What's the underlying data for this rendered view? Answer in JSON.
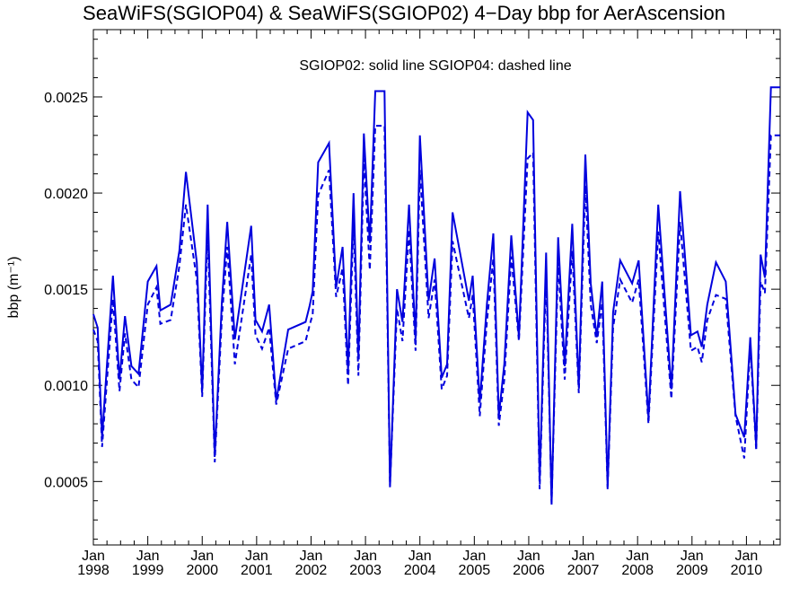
{
  "chart_data": {
    "type": "line",
    "title": "SeaWiFS(SGIOP04) & SeaWiFS(SGIOP02) 4−Day bbp for AerAscension",
    "annotation": "SGIOP02: solid line   SGIOP04: dashed line",
    "ylabel": "bbp",
    "ylabel_unit": "(m⁻¹)",
    "ylim": [
      0.00017,
      0.00285
    ],
    "xlim": [
      1998.0,
      2010.62
    ],
    "yticks": [
      "0.0005",
      "0.0010",
      "0.0015",
      "0.0020",
      "0.0025"
    ],
    "ytick_values": [
      0.0005,
      0.001,
      0.0015,
      0.002,
      0.0025
    ],
    "xticks": [
      {
        "month": "Jan",
        "year": "1998",
        "value": 1998
      },
      {
        "month": "Jan",
        "year": "1999",
        "value": 1999
      },
      {
        "month": "Jan",
        "year": "2000",
        "value": 2000
      },
      {
        "month": "Jan",
        "year": "2001",
        "value": 2001
      },
      {
        "month": "Jan",
        "year": "2002",
        "value": 2002
      },
      {
        "month": "Jan",
        "year": "2003",
        "value": 2003
      },
      {
        "month": "Jan",
        "year": "2004",
        "value": 2004
      },
      {
        "month": "Jan",
        "year": "2005",
        "value": 2005
      },
      {
        "month": "Jan",
        "year": "2006",
        "value": 2006
      },
      {
        "month": "Jan",
        "year": "2007",
        "value": 2007
      },
      {
        "month": "Jan",
        "year": "2008",
        "value": 2008
      },
      {
        "month": "Jan",
        "year": "2009",
        "value": 2009
      },
      {
        "month": "Jan",
        "year": "2010",
        "value": 2010
      }
    ],
    "grid": false,
    "series_color": "#0000dd",
    "series": [
      {
        "line_style": "solid",
        "x": [
          1998.0,
          1998.08,
          1998.16,
          1998.36,
          1998.48,
          1998.58,
          1998.7,
          1998.83,
          1999.0,
          1999.16,
          1999.23,
          1999.42,
          1999.58,
          1999.7,
          1999.9,
          2000.0,
          2000.1,
          2000.23,
          2000.36,
          2000.46,
          2000.6,
          2000.9,
          2000.98,
          2001.1,
          2001.23,
          2001.36,
          2001.58,
          2001.9,
          2001.97,
          2002.03,
          2002.13,
          2002.33,
          2002.46,
          2002.58,
          2002.68,
          2002.78,
          2002.87,
          2002.97,
          2003.08,
          2003.18,
          2003.35,
          2003.45,
          2003.58,
          2003.68,
          2003.8,
          2003.92,
          2004.0,
          2004.16,
          2004.27,
          2004.4,
          2004.5,
          2004.6,
          2004.9,
          2004.97,
          2005.1,
          2005.23,
          2005.35,
          2005.45,
          2005.55,
          2005.68,
          2005.82,
          2005.98,
          2006.08,
          2006.2,
          2006.32,
          2006.42,
          2006.54,
          2006.66,
          2006.8,
          2006.92,
          2007.04,
          2007.14,
          2007.25,
          2007.35,
          2007.45,
          2007.55,
          2007.68,
          2007.9,
          2008.02,
          2008.2,
          2008.38,
          2008.62,
          2008.78,
          2008.98,
          2009.1,
          2009.18,
          2009.28,
          2009.44,
          2009.62,
          2009.8,
          2009.96,
          2010.07,
          2010.18,
          2010.26,
          2010.34,
          2010.45,
          2010.52,
          2010.58,
          2010.62
        ],
        "y": [
          0.00137,
          0.0013,
          0.00073,
          0.00157,
          0.00103,
          0.00136,
          0.0011,
          0.00106,
          0.00154,
          0.00162,
          0.00139,
          0.00142,
          0.0017,
          0.00211,
          0.00164,
          0.00097,
          0.00194,
          0.00063,
          0.00143,
          0.00185,
          0.00124,
          0.00183,
          0.00134,
          0.00128,
          0.00142,
          0.00092,
          0.00129,
          0.00133,
          0.00141,
          0.00149,
          0.00216,
          0.00226,
          0.00151,
          0.00172,
          0.00108,
          0.002,
          0.00114,
          0.00231,
          0.00174,
          0.00253,
          0.00253,
          0.00047,
          0.0015,
          0.00133,
          0.00194,
          0.00124,
          0.0023,
          0.00144,
          0.00166,
          0.00104,
          0.00111,
          0.0019,
          0.00144,
          0.00157,
          0.00091,
          0.00142,
          0.00179,
          0.00084,
          0.00111,
          0.00178,
          0.00125,
          0.00242,
          0.00238,
          0.0005,
          0.00169,
          0.00038,
          0.00177,
          0.0011,
          0.00184,
          0.00099,
          0.0022,
          0.00153,
          0.00125,
          0.00154,
          0.00047,
          0.00138,
          0.00165,
          0.00153,
          0.00165,
          0.00083,
          0.00194,
          0.00098,
          0.00201,
          0.00126,
          0.00128,
          0.0012,
          0.00142,
          0.00164,
          0.00154,
          0.00085,
          0.00073,
          0.00125,
          0.00068,
          0.00168,
          0.00156,
          0.00255,
          0.00255,
          0.00255,
          0.00255
        ]
      },
      {
        "line_style": "dashed",
        "x": [
          1998.0,
          1998.08,
          1998.16,
          1998.36,
          1998.48,
          1998.58,
          1998.7,
          1998.83,
          1999.0,
          1999.16,
          1999.23,
          1999.42,
          1999.58,
          1999.7,
          1999.9,
          2000.0,
          2000.1,
          2000.23,
          2000.36,
          2000.46,
          2000.6,
          2000.9,
          2000.98,
          2001.1,
          2001.23,
          2001.36,
          2001.58,
          2001.9,
          2001.97,
          2002.03,
          2002.13,
          2002.33,
          2002.46,
          2002.58,
          2002.68,
          2002.78,
          2002.87,
          2002.97,
          2003.08,
          2003.18,
          2003.35,
          2003.45,
          2003.58,
          2003.68,
          2003.8,
          2003.92,
          2004.0,
          2004.16,
          2004.27,
          2004.4,
          2004.5,
          2004.6,
          2004.9,
          2004.97,
          2005.1,
          2005.23,
          2005.35,
          2005.45,
          2005.55,
          2005.68,
          2005.82,
          2005.98,
          2006.08,
          2006.2,
          2006.32,
          2006.42,
          2006.54,
          2006.66,
          2006.8,
          2006.92,
          2007.04,
          2007.14,
          2007.25,
          2007.35,
          2007.45,
          2007.55,
          2007.68,
          2007.9,
          2008.02,
          2008.2,
          2008.38,
          2008.62,
          2008.78,
          2008.98,
          2009.1,
          2009.18,
          2009.28,
          2009.44,
          2009.62,
          2009.8,
          2009.96,
          2010.07,
          2010.18,
          2010.26,
          2010.34,
          2010.45,
          2010.52,
          2010.58,
          2010.62
        ],
        "y": [
          0.00129,
          0.00123,
          0.00068,
          0.00145,
          0.00097,
          0.00127,
          0.00103,
          0.00099,
          0.00142,
          0.00151,
          0.00132,
          0.00134,
          0.00162,
          0.00194,
          0.00155,
          0.00094,
          0.0018,
          0.0006,
          0.00135,
          0.00172,
          0.00111,
          0.00168,
          0.00126,
          0.00119,
          0.0013,
          0.0009,
          0.00119,
          0.00123,
          0.00131,
          0.00137,
          0.00199,
          0.00212,
          0.00146,
          0.00161,
          0.001,
          0.00185,
          0.00105,
          0.00218,
          0.0016,
          0.00235,
          0.00235,
          0.00048,
          0.0014,
          0.00123,
          0.00181,
          0.00118,
          0.00212,
          0.00135,
          0.00155,
          0.00098,
          0.00105,
          0.00175,
          0.00135,
          0.00147,
          0.00084,
          0.00133,
          0.00166,
          0.00079,
          0.00103,
          0.00167,
          0.00123,
          0.00218,
          0.00221,
          0.00046,
          0.00159,
          0.00039,
          0.00164,
          0.00103,
          0.0017,
          0.00096,
          0.00204,
          0.00142,
          0.00122,
          0.00143,
          0.00046,
          0.0013,
          0.00155,
          0.00143,
          0.00155,
          0.0008,
          0.0018,
          0.00093,
          0.00185,
          0.00118,
          0.0012,
          0.00112,
          0.00134,
          0.00147,
          0.00145,
          0.00084,
          0.00062,
          0.00121,
          0.00066,
          0.00154,
          0.00148,
          0.0023,
          0.0023,
          0.0023,
          0.0023
        ]
      }
    ]
  }
}
